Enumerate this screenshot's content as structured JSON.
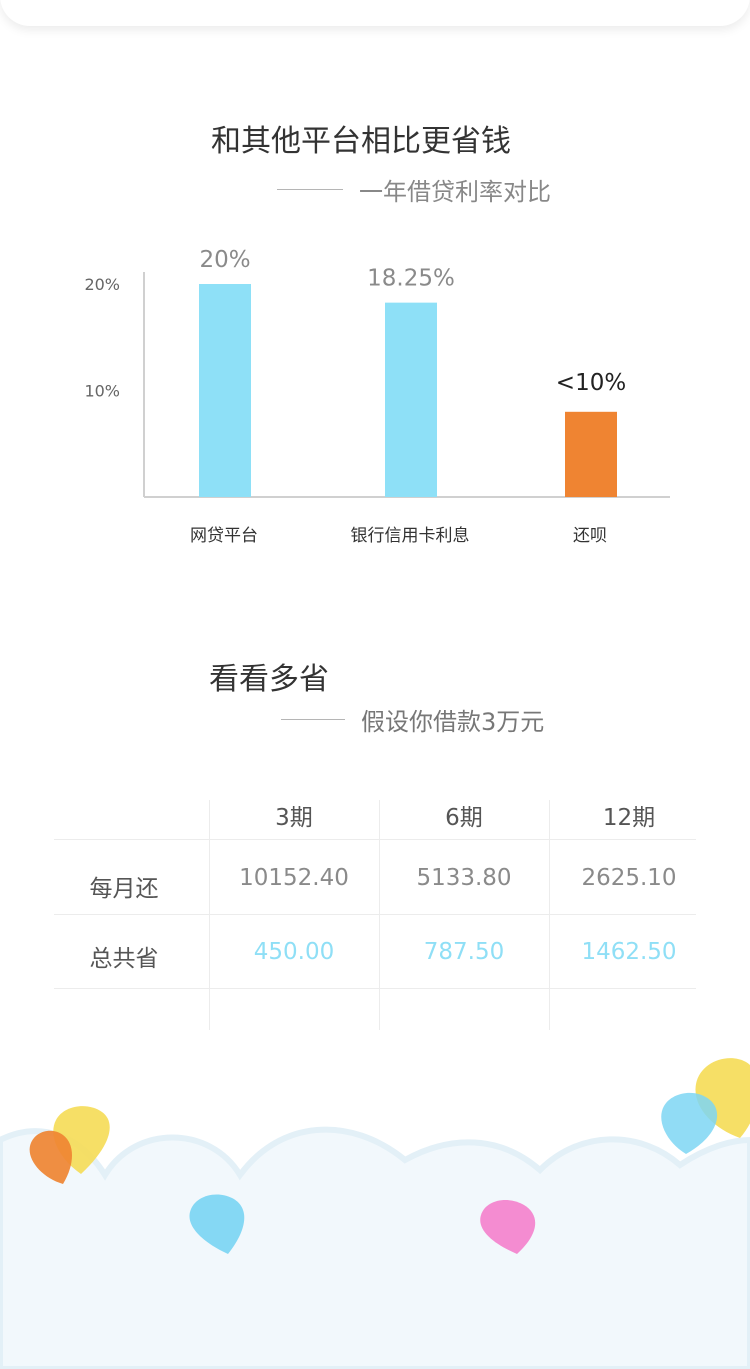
{
  "comparison": {
    "title": "和其他平台相比更省钱",
    "subtitle": "一年借贷利率对比"
  },
  "chart_data": {
    "type": "bar",
    "categories": [
      "网贷平台",
      "银行信用卡利息",
      "还呗"
    ],
    "values": [
      20,
      18.25,
      8
    ],
    "data_labels": [
      "20%",
      "18.25%",
      "<10%"
    ],
    "colors": [
      "#8ee0f7",
      "#8ee0f7",
      "#ef8432"
    ],
    "y_ticks": [
      {
        "value": 20,
        "label": "20%"
      },
      {
        "value": 10,
        "label": "10%"
      }
    ],
    "ylim": [
      0,
      20
    ],
    "grid": false,
    "xlabel": "",
    "ylabel": ""
  },
  "savings": {
    "title": "看看多省",
    "subtitle": "假设你借款3万元",
    "columns": [
      "3期",
      "6期",
      "12期"
    ],
    "rows": [
      {
        "label": "每月还",
        "values": [
          "10152.40",
          "5133.80",
          "2625.10"
        ]
      },
      {
        "label": "总共省",
        "values": [
          "450.00",
          "787.50",
          "1462.50"
        ]
      }
    ]
  },
  "decoration": {
    "balloon_colors": [
      "#f5dc55",
      "#ef8432",
      "#7ed6f3",
      "#f386cf"
    ],
    "cloud_color": "#eef6fb"
  }
}
